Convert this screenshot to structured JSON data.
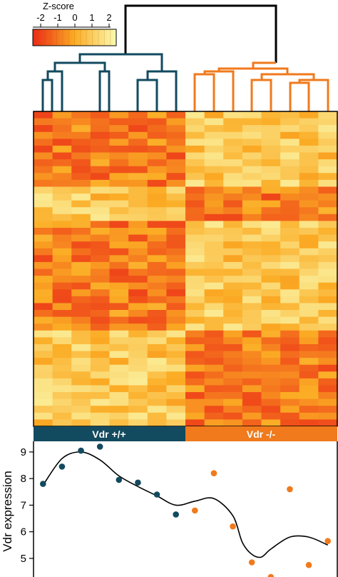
{
  "colorkey": {
    "title": "Z-score",
    "ticks": [
      "-2",
      "-1",
      "0",
      "1",
      "2"
    ],
    "range": [
      -2.5,
      2.5
    ]
  },
  "groups": [
    {
      "label": "Vdr +/+",
      "color": "#124a5f"
    },
    {
      "label": "Vdr -/-",
      "color": "#f07a1c"
    }
  ],
  "colors": {
    "dendro_top": "#000000",
    "heat_low": "#ec2a16",
    "heat_mid": "#fbac24",
    "heat_high": "#fbfbb0",
    "smooth_line": "#000000"
  },
  "chart_data": [
    {
      "type": "heatmap",
      "columns": 16,
      "rows": 46,
      "group_sizes": [
        8,
        8
      ],
      "value_scale": "Z-score",
      "pattern": "rows 0-10, 16-31 low in Vdr +/+, high in Vdr -/-; rows 11-15, 32-45 high in Vdr +/+, low in Vdr -/-"
    },
    {
      "type": "scatter",
      "xlabel": "",
      "ylabel": "Vdr expression",
      "yticks": [
        5,
        6,
        7,
        8,
        9
      ],
      "ylim": [
        4.3,
        9.4
      ],
      "xlim": [
        0.5,
        16.5
      ],
      "series": [
        {
          "name": "Vdr +/+",
          "color": "#124a5f",
          "x": [
            1,
            2,
            3,
            4,
            5,
            6,
            7,
            8
          ],
          "y": [
            7.8,
            8.45,
            9.05,
            9.2,
            7.95,
            7.85,
            7.4,
            6.65
          ]
        },
        {
          "name": "Vdr -/-",
          "color": "#f07a1c",
          "x": [
            9,
            10,
            11,
            12,
            13,
            14,
            15,
            16
          ],
          "y": [
            6.8,
            8.2,
            6.2,
            4.85,
            4.3,
            7.6,
            4.75,
            5.65
          ]
        }
      ],
      "smooth": {
        "x": [
          1,
          2,
          3,
          4,
          5,
          6,
          7,
          8,
          9,
          10,
          11,
          11.5,
          12,
          12.5,
          13,
          14,
          15,
          16
        ],
        "y": [
          7.75,
          8.75,
          9.0,
          8.7,
          8.1,
          7.7,
          7.35,
          7.0,
          7.15,
          7.25,
          6.6,
          5.6,
          5.15,
          5.05,
          5.35,
          5.8,
          5.8,
          5.5
        ]
      }
    }
  ]
}
